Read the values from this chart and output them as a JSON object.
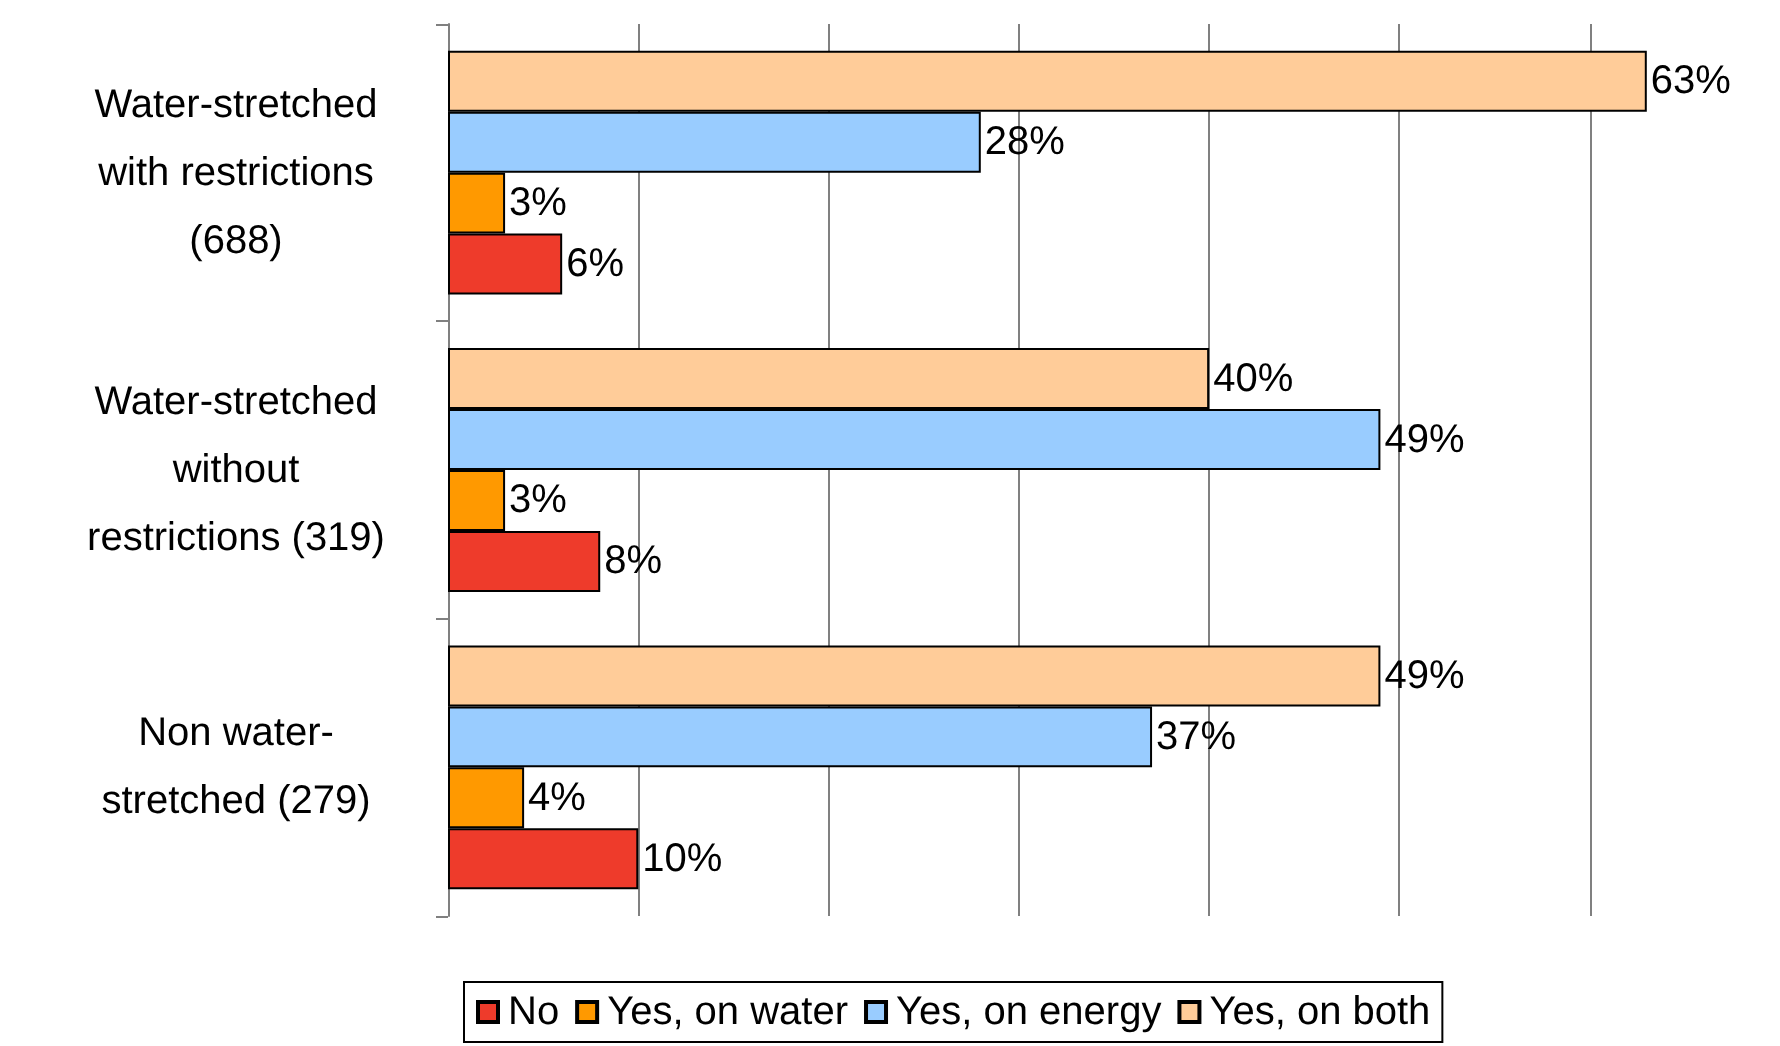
{
  "chart_data": {
    "type": "bar",
    "orientation": "horizontal",
    "categories": [
      "Water-stretched\nwith restrictions\n(688)",
      "Water-stretched\nwithout\nrestrictions (319)",
      "Non water-\nstretched (279)"
    ],
    "series": [
      {
        "name": "Yes, on both",
        "color": "#ffcc99",
        "values": [
          63,
          40,
          49
        ],
        "value_labels": [
          "63%",
          "40%",
          "49%"
        ]
      },
      {
        "name": "Yes, on energy",
        "color": "#99ccff",
        "values": [
          28,
          49,
          37
        ],
        "value_labels": [
          "28%",
          "49%",
          "37%"
        ]
      },
      {
        "name": "Yes, on water",
        "color": "#ff9900",
        "values": [
          3,
          3,
          4
        ],
        "value_labels": [
          "3%",
          "3%",
          "4%"
        ]
      },
      {
        "name": "No",
        "color": "#ee3b2b",
        "values": [
          6,
          8,
          10
        ],
        "value_labels": [
          "6%",
          "8%",
          "10%"
        ]
      }
    ],
    "xticks": [
      {
        "value": 0,
        "label": null
      },
      {
        "value": 10,
        "label": null
      },
      {
        "value": 20,
        "label": null
      },
      {
        "value": 30,
        "label": null
      },
      {
        "value": 40,
        "label": null
      },
      {
        "value": 50,
        "label": null
      },
      {
        "value": 60,
        "label": null
      }
    ],
    "tick_labels": "y",
    "grid": "x",
    "legend": "bottom"
  }
}
